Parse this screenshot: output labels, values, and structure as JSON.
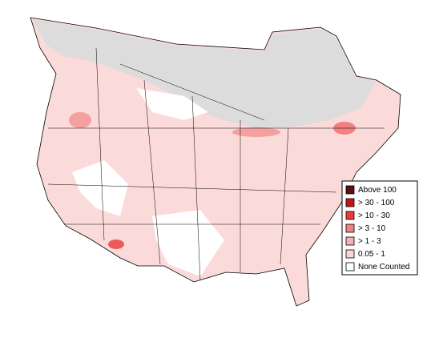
{
  "legend": {
    "items": [
      {
        "label": "Above 100",
        "color": "#5a1010"
      },
      {
        "label": "> 30 - 100",
        "color": "#c81414"
      },
      {
        "label": "> 10 - 30",
        "color": "#ee3a3a"
      },
      {
        "label": "> 3 - 10",
        "color": "#f28080"
      },
      {
        "label": "> 1 - 3",
        "color": "#f7b0b0"
      },
      {
        "label": "0.05 - 1",
        "color": "#fbd6d6"
      },
      {
        "label": "None Counted",
        "color": "#ffffff"
      }
    ]
  }
}
